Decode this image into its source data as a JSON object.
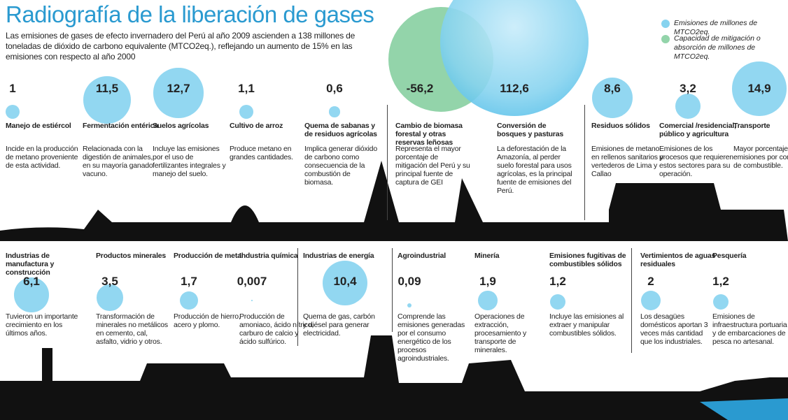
{
  "title": "Radiografía de la liberación de gases",
  "subtitle": "Las emisiones de gases de efecto invernadero del Perú al año 2009 ascienden a 138 millones de toneladas de dióxido de carbono equivalente (MTCO2eq.), reflejando un aumento de 15% en las emisiones con respecto al año 2000",
  "legend": [
    {
      "label": "Emisiones de millones de MTCO2eq.",
      "color": "#86d3ef"
    },
    {
      "label": "Capacidad de mitigación o absorción de millones de MTCO2eq.",
      "color": "#93d4aa"
    }
  ],
  "items": [
    {
      "value": 1,
      "label": "1",
      "name": "Manejo de estiércol",
      "description": "Incide en la producción de metano proveniente de esta actividad."
    },
    {
      "value": 11.5,
      "label": "11,5",
      "name": "Fermentación entérica",
      "description": "Relacionada con la digestión de animales, en su mayoría ganado vacuno."
    },
    {
      "value": 12.7,
      "label": "12,7",
      "name": "Suelos agrícolas",
      "description": "Incluye las emisiones por el uso de fertilizantes integrales y manejo del suelo."
    },
    {
      "value": 1.1,
      "label": "1,1",
      "name": "Cultivo de arroz",
      "description": "Produce metano en grandes cantidades."
    },
    {
      "value": 0.6,
      "label": "0,6",
      "name": "Quema de sabanas y de residuos agrícolas",
      "description": "Implica generar dióxido de carbono como consecuencia de la combustión de biomasa."
    },
    {
      "value": -56.2,
      "label": "-56,2",
      "name": "Cambio de biomasa forestal y otras reservas leñosas",
      "description": "Representa el mayor porcentaje de mitigación del Perú y su principal fuente de captura de GEI"
    },
    {
      "value": 112.6,
      "label": "112,6",
      "name": "Conversión de bosques y pasturas",
      "description": "La deforestación de la Amazonía, al perder suelo forestal para usos agrícolas, es la principal fuente de emisiones del Perú."
    },
    {
      "value": 8.6,
      "label": "8,6",
      "name": "Residuos sólidos",
      "description": "Emisiones de metano en rellenos sanitarios y vertederos de Lima y Callao"
    },
    {
      "value": 3.2,
      "label": "3,2",
      "name": "Comercial /residencial, público y agricultura",
      "description": "Emisiones de los procesos que requieren estos sectores para su operación."
    },
    {
      "value": 14.9,
      "label": "14,9",
      "name": "Transporte",
      "description": "Mayor porcentaje de emisiones por consumo de combustible."
    },
    {
      "value": 6.1,
      "label": "6,1",
      "name": "Industrias de manufactura y construcción",
      "description": "Tuvieron un importante crecimiento en los últimos años."
    },
    {
      "value": 3.5,
      "label": "3,5",
      "name": "Productos minerales",
      "description": "Transformación de minerales no metálicos en cemento, cal, asfalto, vidrio y otros."
    },
    {
      "value": 1.7,
      "label": "1,7",
      "name": "Producción de metal",
      "description": "Producción de hierro, acero y plomo."
    },
    {
      "value": 0.007,
      "label": "0,007",
      "name": "Industria química",
      "description": "Producción de amoniaco, ácido nítrico, carburo de calcio y ácido sulfúrico."
    },
    {
      "value": 10.4,
      "label": "10,4",
      "name": "Industrias de energía",
      "description": "Quema de gas, carbón y diésel para generar electricidad."
    },
    {
      "value": 0.09,
      "label": "0,09",
      "name": "Agroindustrial",
      "description": "Comprende las emisiones generadas por el consumo energético de los procesos agroindustriales."
    },
    {
      "value": 1.9,
      "label": "1,9",
      "name": "Minería",
      "description": "Operaciones de extracción, procesamiento y transporte de minerales."
    },
    {
      "value": 1.2,
      "label": "1,2",
      "name": "Emisiones fugitivas de combustibles sólidos",
      "description": "Incluye las emisiones al extraer y manipular combustibles sólidos."
    },
    {
      "value": 2,
      "label": "2",
      "name": "Vertimientos de aguas residuales",
      "description": "Los desagües domésticos aportan 3 veces más cantidad que los industriales."
    },
    {
      "value": 1.2,
      "label": "1,2",
      "name": "Pesquería",
      "description": "Emisiones de infraestructura portuaria y de embarcaciones de pesca no artesanal."
    }
  ]
}
